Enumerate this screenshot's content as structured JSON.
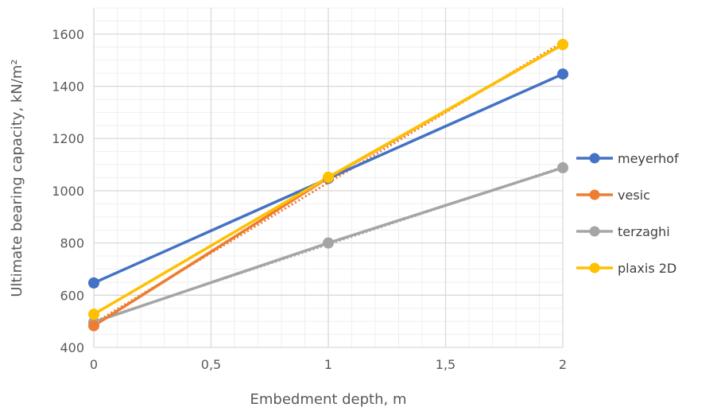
{
  "chart_data": {
    "type": "line",
    "xlabel": "Embedment depth, m",
    "ylabel": "Ultimate bearing capacity, kN/m²",
    "xlim": [
      0,
      2
    ],
    "ylim": [
      400,
      1700
    ],
    "x_ticks": [
      0,
      0.5,
      1,
      1.5,
      2
    ],
    "x_tick_labels": [
      "0",
      "0,5",
      "1",
      "1,5",
      "2"
    ],
    "y_ticks": [
      400,
      600,
      800,
      1000,
      1200,
      1400,
      1600
    ],
    "y_tick_labels": [
      "400",
      "600",
      "800",
      "1000",
      "1200",
      "1400",
      "1600"
    ],
    "grid": true,
    "legend_position": "right",
    "x": [
      0,
      1,
      2
    ],
    "series": [
      {
        "name": "meyerhof",
        "values": [
          647,
          1047,
          1447
        ],
        "color": "#4472C4",
        "trendline": false
      },
      {
        "name": "vesic",
        "values": [
          483,
          1050,
          1560
        ],
        "color": "#ED7D31",
        "trendline": true
      },
      {
        "name": "terzaghi",
        "values": [
          497,
          800,
          1088
        ],
        "color": "#A5A5A5",
        "trendline": true
      },
      {
        "name": "plaxis 2D",
        "values": [
          527,
          1052,
          1560
        ],
        "color": "#FFC000",
        "trendline": false
      }
    ]
  }
}
